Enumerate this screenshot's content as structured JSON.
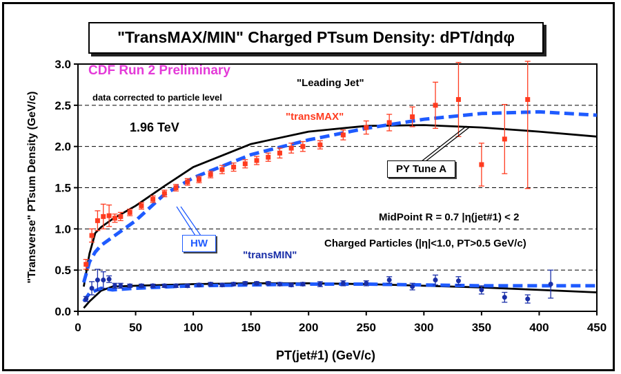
{
  "chart_data": {
    "type": "scatter",
    "title": "\"TransMAX/MIN\" Charged PTsum Density: dPT/dηdφ",
    "xlabel": "PT(jet#1)  (GeV/c)",
    "ylabel": "\"Transverse\" PTsum Density (GeV/c)",
    "xlim": [
      0,
      450
    ],
    "ylim": [
      0,
      3.0
    ],
    "x_ticks": [
      "0",
      "50",
      "100",
      "150",
      "200",
      "250",
      "300",
      "350",
      "400",
      "450"
    ],
    "y_ticks": [
      "0.0",
      "0.5",
      "1.0",
      "1.5",
      "2.0",
      "2.5",
      "3.0"
    ],
    "grid": "horizontal dashed",
    "annotations": {
      "experiment": "CDF Run 2 Preliminary",
      "correction": "data corrected to particle level",
      "energy": "1.96 TeV",
      "jet_type": "\"Leading Jet\"",
      "trans_max": "\"transMAX\"",
      "trans_min": "\"transMIN\"",
      "pythia": "PY Tune A",
      "herwig": "HW",
      "midpoint": "MidPoint R = 0.7 |η(jet#1) < 2",
      "charged": "Charged Particles (|η|<1.0, PT>0.5 GeV/c)"
    },
    "series": [
      {
        "name": "\"transMAX\"",
        "kind": "data",
        "color": "#ff3b1f",
        "marker": "square",
        "x": [
          7,
          12,
          17,
          22,
          27,
          32,
          37,
          45,
          55,
          65,
          75,
          85,
          95,
          105,
          115,
          125,
          135,
          145,
          155,
          165,
          175,
          185,
          195,
          210,
          230,
          250,
          270,
          290,
          310,
          330,
          350,
          370,
          390
        ],
        "y": [
          0.57,
          0.92,
          1.1,
          1.15,
          1.16,
          1.13,
          1.15,
          1.2,
          1.28,
          1.36,
          1.43,
          1.5,
          1.57,
          1.6,
          1.66,
          1.72,
          1.75,
          1.79,
          1.83,
          1.87,
          1.92,
          1.98,
          2.0,
          2.02,
          2.14,
          2.23,
          2.29,
          2.36,
          2.5,
          2.57,
          1.78,
          2.09,
          2.57
        ],
        "err": [
          0.06,
          0.08,
          0.12,
          0.15,
          0.13,
          0.05,
          0.05,
          0.04,
          0.04,
          0.04,
          0.04,
          0.04,
          0.04,
          0.04,
          0.04,
          0.05,
          0.05,
          0.05,
          0.05,
          0.05,
          0.06,
          0.06,
          0.06,
          0.05,
          0.06,
          0.08,
          0.1,
          0.12,
          0.28,
          0.45,
          0.26,
          0.42,
          1.08
        ]
      },
      {
        "name": "\"transMIN\"",
        "kind": "data",
        "color": "#1a2fa8",
        "marker": "circle",
        "x": [
          7,
          12,
          17,
          22,
          27,
          32,
          37,
          45,
          55,
          65,
          75,
          85,
          95,
          105,
          115,
          125,
          135,
          145,
          155,
          165,
          175,
          185,
          195,
          210,
          230,
          250,
          270,
          290,
          310,
          330,
          350,
          370,
          390,
          410
        ],
        "y": [
          0.15,
          0.28,
          0.38,
          0.38,
          0.39,
          0.31,
          0.31,
          0.31,
          0.31,
          0.31,
          0.31,
          0.31,
          0.31,
          0.32,
          0.33,
          0.32,
          0.33,
          0.34,
          0.34,
          0.34,
          0.33,
          0.32,
          0.33,
          0.33,
          0.34,
          0.34,
          0.38,
          0.3,
          0.38,
          0.37,
          0.26,
          0.17,
          0.15,
          0.33
        ],
        "err": [
          0.03,
          0.08,
          0.13,
          0.1,
          0.04,
          0.03,
          0.03,
          0.02,
          0.02,
          0.02,
          0.02,
          0.02,
          0.02,
          0.02,
          0.02,
          0.02,
          0.02,
          0.02,
          0.02,
          0.02,
          0.02,
          0.02,
          0.02,
          0.03,
          0.03,
          0.03,
          0.04,
          0.04,
          0.06,
          0.05,
          0.05,
          0.06,
          0.05,
          0.17
        ]
      },
      {
        "name": "PY Tune A",
        "kind": "curve",
        "color": "#000000",
        "style": "solid",
        "x": [
          5,
          10,
          15,
          20,
          30,
          50,
          75,
          100,
          150,
          200,
          250,
          300,
          350,
          400,
          450
        ],
        "y": [
          0.3,
          0.7,
          0.95,
          1.02,
          1.12,
          1.28,
          1.52,
          1.75,
          2.03,
          2.18,
          2.25,
          2.26,
          2.23,
          2.18,
          2.12
        ]
      },
      {
        "name": "PY Tune A transMIN",
        "kind": "curve",
        "color": "#000000",
        "style": "solid",
        "x": [
          5,
          10,
          20,
          30,
          50,
          100,
          150,
          200,
          250,
          300,
          350,
          400,
          450
        ],
        "y": [
          0.04,
          0.12,
          0.25,
          0.3,
          0.31,
          0.33,
          0.34,
          0.34,
          0.33,
          0.31,
          0.29,
          0.26,
          0.23
        ]
      },
      {
        "name": "HW",
        "kind": "curve",
        "color": "#1f5bff",
        "style": "dashed",
        "x": [
          5,
          10,
          15,
          20,
          30,
          50,
          75,
          100,
          150,
          200,
          250,
          300,
          350,
          400,
          450
        ],
        "y": [
          0.35,
          0.6,
          0.72,
          0.8,
          0.9,
          1.1,
          1.42,
          1.62,
          1.9,
          2.08,
          2.22,
          2.33,
          2.4,
          2.42,
          2.38
        ]
      },
      {
        "name": "HW transMIN",
        "kind": "curve",
        "color": "#1f5bff",
        "style": "dashed",
        "x": [
          5,
          10,
          20,
          30,
          50,
          100,
          150,
          200,
          250,
          300,
          350,
          400,
          450
        ],
        "y": [
          0.12,
          0.22,
          0.28,
          0.26,
          0.28,
          0.31,
          0.32,
          0.33,
          0.33,
          0.32,
          0.31,
          0.31,
          0.31
        ]
      }
    ]
  }
}
